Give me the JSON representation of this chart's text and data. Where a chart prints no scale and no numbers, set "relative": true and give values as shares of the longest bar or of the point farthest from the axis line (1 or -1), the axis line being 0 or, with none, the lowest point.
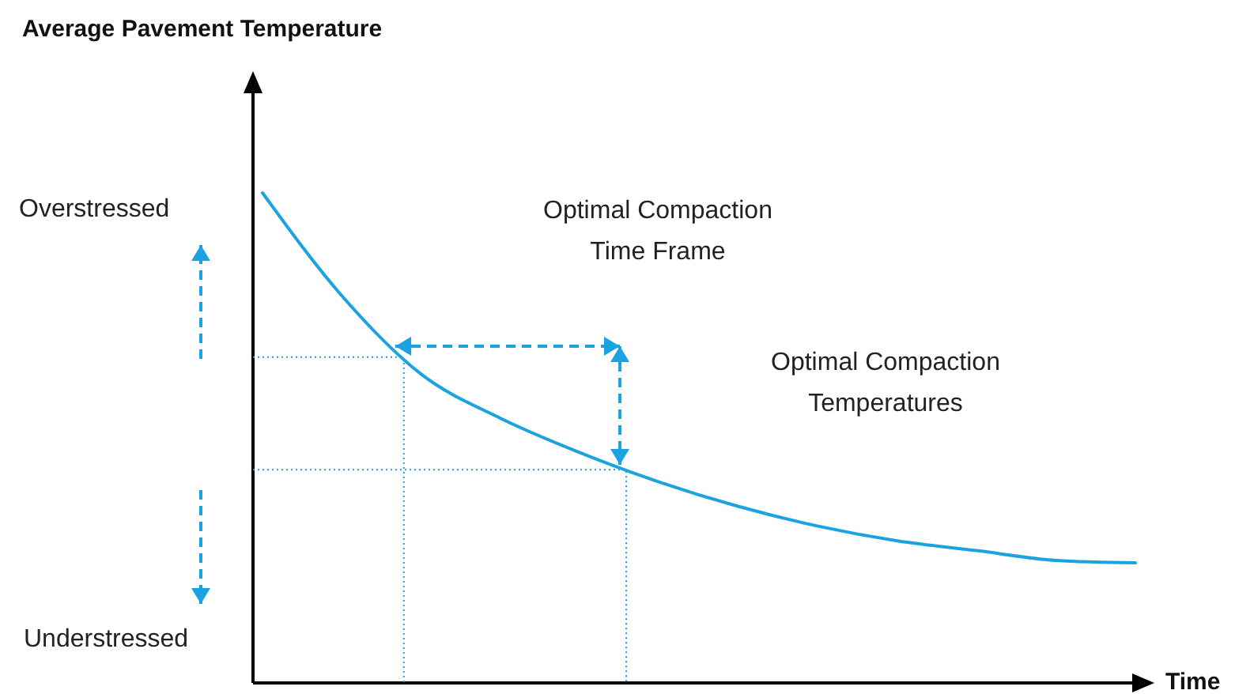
{
  "chart_data": {
    "type": "line",
    "title": "Average Pavement Temperature",
    "xlabel": "Time",
    "relative": true,
    "categories": [
      null,
      null,
      null,
      null,
      null,
      null,
      null,
      null,
      null,
      null,
      null,
      null
    ],
    "series": [
      {
        "color": "#1aa3e0",
        "values": [
          1,
          0.79,
          0.63,
          0.54,
          0.47,
          0.41,
          0.36,
          0.32,
          0.29,
          0.27,
          0.25,
          0.245
        ]
      }
    ],
    "ref_lines": [
      {
        "axis": "y",
        "value": 0.665,
        "color": "#1aa3e0",
        "line_style": "dotted"
      },
      {
        "axis": "y",
        "value": 0.435,
        "color": "#1aa3e0",
        "line_style": "dotted"
      }
    ],
    "annotations": [
      "Overstressed",
      "Understressed",
      "Optimal Compaction\nTime Frame",
      "Optimal Compaction\nTemperatures"
    ]
  }
}
